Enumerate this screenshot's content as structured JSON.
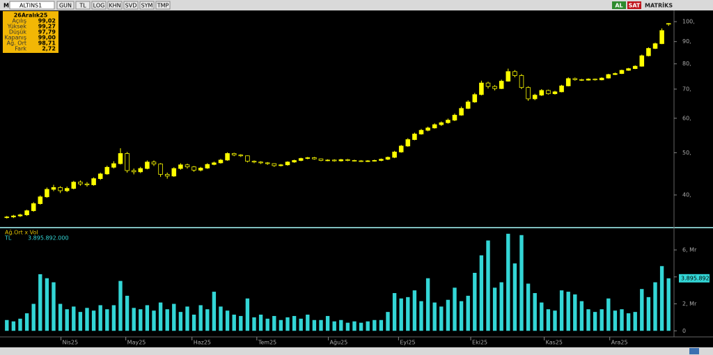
{
  "toolbar": {
    "logo": "M",
    "symbol": "ALTINS1",
    "buttons": [
      "GUN",
      "TL",
      "LOG",
      "KHN",
      "SVD",
      "SYM",
      "TMP"
    ],
    "actions": [
      "AL",
      "SAT"
    ],
    "brand": "MATRİKS"
  },
  "info_box": {
    "date": "26Aralık25",
    "rows": [
      {
        "label": "Açılış",
        "value": "99,02"
      },
      {
        "label": "Yüksek",
        "value": "99,27"
      },
      {
        "label": "Düşük",
        "value": "97,79"
      },
      {
        "label": "Kapanış",
        "value": "99,00"
      },
      {
        "label": "Ağ. Ort",
        "value": "98,71"
      },
      {
        "label": "Fark",
        "value": "2,72"
      }
    ]
  },
  "chart_data": [
    {
      "type": "candlestick",
      "color": "#ffff00",
      "log": true,
      "grid": false,
      "xlim": [
        0,
        100
      ],
      "ylim": [
        33.9,
        106.1
      ],
      "yticks": [
        {
          "value": 40,
          "label": "40,"
        },
        {
          "value": 50,
          "label": "50,"
        },
        {
          "value": 60,
          "label": "60,"
        },
        {
          "value": 70,
          "label": "70,"
        },
        {
          "value": 80,
          "label": "80,"
        },
        {
          "value": 90,
          "label": "90,"
        },
        {
          "value": 100,
          "label": "100,"
        }
      ],
      "open": [
        35.5,
        35.6,
        35.8,
        36.0,
        36.8,
        38.2,
        39.6,
        41.2,
        41.6,
        40.9,
        41.4,
        42.8,
        42.4,
        42.2,
        43.6,
        44.7,
        46.3,
        47.2,
        49.8,
        45.5,
        45.2,
        46.0,
        47.6,
        47.1,
        44.6,
        44.2,
        46.0,
        46.9,
        46.4,
        45.6,
        46.1,
        47.0,
        47.4,
        48.1,
        49.8,
        49.4,
        49.2,
        47.8,
        47.6,
        47.4,
        47.2,
        46.7,
        46.9,
        47.6,
        48.0,
        48.5,
        48.7,
        48.4,
        48.0,
        48.1,
        47.9,
        48.2,
        48.0,
        47.9,
        47.8,
        47.9,
        48.0,
        48.3,
        48.8,
        50.2,
        51.8,
        53.6,
        55.2,
        56.3,
        57.0,
        58.0,
        58.6,
        59.4,
        61.0,
        63.2,
        65.4,
        68.0,
        72.3,
        71.0,
        70.2,
        73.0,
        76.8,
        75.2,
        70.6,
        66.5,
        67.8,
        69.5,
        68.3,
        69.0,
        71.2,
        74.0,
        73.6,
        73.4,
        73.8,
        73.5,
        74.2,
        75.6,
        76.0,
        77.3,
        78.0,
        79.0,
        83.5,
        86.8,
        89.0,
        99.02
      ],
      "high": [
        35.8,
        36.0,
        36.2,
        37.0,
        38.5,
        39.9,
        41.6,
        42.2,
        41.9,
        41.8,
        43.1,
        43.2,
        42.8,
        43.9,
        45.0,
        46.7,
        47.8,
        51.2,
        50.2,
        46.0,
        46.4,
        48.0,
        48.0,
        47.3,
        45.0,
        46.3,
        47.3,
        47.2,
        46.6,
        46.4,
        47.3,
        47.7,
        48.4,
        50.1,
        50.0,
        49.6,
        49.3,
        48.0,
        47.8,
        47.6,
        47.3,
        47.1,
        47.8,
        48.2,
        48.7,
        48.9,
        48.9,
        48.5,
        48.3,
        48.3,
        48.4,
        48.4,
        48.2,
        48.1,
        48.1,
        48.2,
        48.5,
        49.0,
        50.5,
        52.1,
        54.0,
        55.6,
        56.7,
        57.4,
        58.4,
        59.0,
        59.9,
        61.5,
        63.8,
        66.0,
        68.6,
        73.2,
        72.8,
        71.5,
        73.6,
        78.0,
        77.4,
        75.8,
        71.0,
        68.3,
        70.0,
        69.8,
        69.4,
        71.6,
        74.5,
        74.4,
        73.9,
        74.1,
        74.0,
        74.5,
        75.9,
        76.4,
        77.6,
        78.3,
        79.4,
        84.0,
        87.3,
        89.5,
        96.5,
        99.27
      ],
      "low": [
        35.3,
        35.4,
        35.6,
        35.8,
        36.6,
        38.0,
        39.4,
        40.8,
        40.4,
        40.6,
        41.2,
        42.0,
        41.8,
        42.0,
        43.3,
        44.5,
        46.0,
        47.0,
        45.0,
        44.6,
        44.9,
        45.8,
        46.6,
        44.0,
        43.6,
        44.0,
        45.7,
        46.0,
        45.2,
        45.3,
        45.9,
        46.8,
        47.2,
        47.9,
        49.1,
        48.9,
        47.5,
        47.3,
        47.1,
        46.9,
        46.4,
        46.5,
        46.7,
        47.4,
        47.8,
        48.3,
        48.2,
        47.8,
        47.8,
        47.7,
        47.7,
        47.8,
        47.7,
        47.6,
        47.6,
        47.7,
        47.8,
        48.1,
        48.6,
        50.0,
        51.6,
        53.4,
        55.0,
        56.0,
        56.8,
        57.6,
        58.3,
        59.1,
        60.8,
        63.0,
        65.1,
        67.7,
        70.2,
        69.5,
        70.0,
        72.8,
        74.5,
        70.0,
        65.8,
        66.0,
        67.5,
        68.0,
        68.0,
        68.8,
        71.0,
        73.2,
        73.1,
        73.2,
        73.2,
        73.3,
        74.0,
        75.4,
        75.8,
        77.1,
        77.8,
        78.8,
        83.2,
        86.5,
        88.8,
        97.79
      ],
      "close": [
        35.6,
        35.8,
        36.0,
        36.8,
        38.2,
        39.6,
        41.2,
        41.6,
        40.9,
        41.4,
        42.8,
        42.4,
        42.2,
        43.6,
        44.7,
        46.3,
        47.2,
        49.8,
        45.5,
        45.2,
        46.0,
        47.6,
        47.1,
        44.6,
        44.2,
        46.0,
        46.9,
        46.4,
        45.6,
        46.1,
        47.0,
        47.4,
        48.1,
        49.8,
        49.4,
        49.2,
        47.8,
        47.6,
        47.4,
        47.2,
        46.7,
        46.9,
        47.6,
        48.0,
        48.5,
        48.7,
        48.4,
        48.0,
        48.1,
        47.9,
        48.2,
        48.0,
        47.9,
        47.8,
        47.9,
        48.0,
        48.3,
        48.8,
        50.2,
        51.8,
        53.6,
        55.2,
        56.3,
        57.0,
        58.0,
        58.6,
        59.4,
        61.0,
        63.2,
        65.4,
        68.0,
        72.3,
        71.0,
        70.2,
        73.0,
        76.8,
        75.2,
        70.6,
        66.5,
        67.8,
        69.5,
        68.3,
        69.0,
        71.2,
        74.0,
        73.6,
        73.4,
        73.8,
        73.5,
        74.2,
        75.6,
        76.0,
        77.3,
        78.0,
        79.0,
        83.5,
        86.8,
        89.0,
        95.4,
        99.0
      ]
    },
    {
      "type": "bar",
      "title": "Ağ.Ort x Vol",
      "unit_label": "TL",
      "legend_value": "3.895.892.000",
      "last_value_label": "3.895.892",
      "color": "#33d6d6",
      "grid": false,
      "xlim": [
        0,
        100
      ],
      "ylim": [
        -0.4,
        7.5
      ],
      "yticks": [
        0,
        {
          "value": 2,
          "label": "2, Mr"
        },
        {
          "value": 4,
          "label": "4, Mr"
        },
        {
          "value": 6,
          "label": "6, Mr"
        }
      ],
      "xticks": [
        {
          "value": 8.6,
          "label": "Nis25"
        },
        {
          "value": 18.3,
          "label": "May25"
        },
        {
          "value": 28.2,
          "label": "Haz25"
        },
        {
          "value": 37.9,
          "label": "Tem25"
        },
        {
          "value": 48.6,
          "label": "Ağu25"
        },
        {
          "value": 59.1,
          "label": "Eyl25"
        },
        {
          "value": 69.9,
          "label": "Eki25"
        },
        {
          "value": 80.9,
          "label": "Kas25"
        },
        {
          "value": 90.7,
          "label": "Ara25"
        }
      ],
      "values": [
        0.8,
        0.7,
        0.9,
        1.3,
        2.0,
        4.2,
        3.9,
        3.6,
        2.0,
        1.6,
        1.8,
        1.4,
        1.7,
        1.5,
        1.9,
        1.6,
        1.9,
        3.7,
        2.6,
        1.7,
        1.6,
        1.9,
        1.5,
        2.1,
        1.6,
        2.0,
        1.4,
        1.8,
        1.2,
        1.9,
        1.6,
        2.9,
        1.8,
        1.5,
        1.2,
        1.1,
        2.4,
        1.0,
        1.2,
        0.9,
        1.1,
        0.8,
        1.0,
        1.1,
        0.9,
        1.2,
        0.8,
        0.8,
        1.1,
        0.7,
        0.8,
        0.6,
        0.7,
        0.6,
        0.7,
        0.8,
        0.8,
        1.4,
        2.8,
        2.4,
        2.5,
        3.0,
        2.2,
        3.9,
        2.1,
        1.8,
        2.3,
        3.2,
        2.2,
        2.6,
        4.3,
        5.6,
        6.7,
        3.2,
        3.6,
        7.2,
        5.0,
        7.1,
        3.5,
        2.8,
        2.1,
        1.6,
        1.5,
        3.0,
        2.9,
        2.7,
        2.2,
        1.6,
        1.4,
        1.6,
        2.4,
        1.5,
        1.6,
        1.3,
        1.4,
        3.1,
        2.5,
        3.6,
        4.8,
        3.895892
      ]
    }
  ]
}
